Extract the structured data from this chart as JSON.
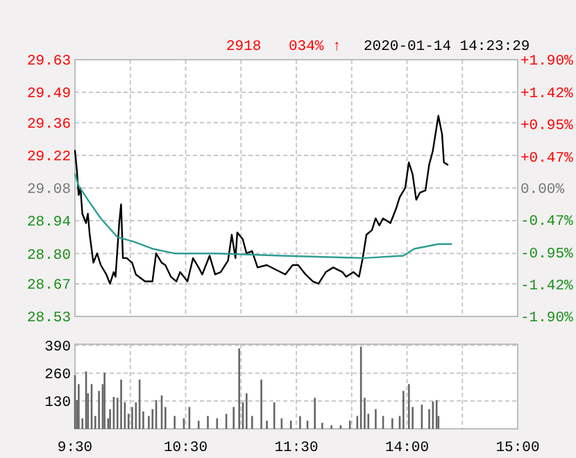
{
  "chart_data": [
    {
      "type": "line",
      "annotations": [
        "2918",
        "034% ↑",
        "2020-01-14 14:23:29"
      ],
      "categories": [
        null,
        null,
        null,
        null,
        null,
        null,
        null,
        null,
        null,
        null,
        null,
        null,
        null,
        null,
        null,
        null,
        null,
        null,
        null,
        null,
        null,
        null,
        null,
        null,
        null,
        null,
        null,
        null,
        null,
        null,
        null,
        null,
        null,
        null,
        null,
        null,
        null,
        null,
        null,
        null,
        null,
        null,
        null,
        null,
        null,
        null,
        null,
        null,
        null,
        null,
        null,
        null,
        null,
        null,
        null,
        null,
        null,
        null,
        null,
        null,
        null,
        null,
        null,
        null,
        null,
        null,
        null,
        null,
        null,
        null,
        null,
        null,
        null,
        null,
        null,
        null,
        null,
        null,
        null,
        null,
        null,
        null,
        null,
        null,
        null,
        null,
        null,
        null,
        null,
        null,
        null,
        null,
        null,
        null,
        null,
        null,
        null,
        null,
        null,
        null,
        null,
        null,
        null,
        null,
        null,
        null,
        null,
        null,
        null,
        null,
        null,
        null,
        null,
        null,
        null,
        null,
        null,
        null,
        null,
        null,
        null,
        null,
        null,
        null,
        null,
        null,
        null,
        null,
        null,
        null,
        null,
        null,
        null,
        null,
        null,
        null,
        null,
        null,
        null,
        null,
        null,
        null,
        null,
        null,
        null,
        null,
        null,
        null,
        null,
        null,
        null,
        null,
        null,
        null,
        null,
        null,
        null,
        null,
        null,
        null,
        null,
        null,
        null,
        null,
        null,
        null,
        null,
        null,
        null,
        null,
        null,
        null,
        null,
        null,
        null,
        null,
        null,
        null,
        null,
        null,
        null,
        null,
        null,
        null,
        null,
        null,
        null,
        null,
        null,
        null,
        null,
        null,
        null,
        null,
        null,
        null,
        null,
        null,
        null,
        null,
        null,
        null,
        null,
        null,
        null,
        null,
        null,
        null,
        null,
        null,
        null,
        null,
        null,
        null,
        null,
        null,
        null,
        null,
        null,
        null,
        null,
        null,
        null,
        null,
        null,
        null,
        null,
        null,
        null,
        null,
        null,
        null,
        null,
        null,
        null,
        null,
        null,
        null,
        null,
        null,
        null
      ],
      "series": [
        {
          "color": "#000000",
          "values": [
            29.24,
            29.16,
            29.05,
            29.08,
            28.97,
            null,
            28.93,
            28.97,
            28.88,
            null,
            28.76,
            null,
            28.8,
            null,
            28.75,
            null,
            null,
            28.71,
            null,
            28.67,
            null,
            28.72,
            28.7,
            null,
            28.93,
            29.01,
            28.78,
            null,
            28.78,
            null,
            null,
            28.76,
            null,
            28.71,
            null,
            null,
            null,
            null,
            28.68,
            null,
            null,
            null,
            28.68,
            null,
            28.8,
            null,
            null,
            28.76,
            null,
            28.75,
            null,
            null,
            28.7,
            null,
            null,
            28.68,
            null,
            28.72,
            null,
            null,
            null,
            28.68,
            null,
            null,
            28.78,
            null,
            null,
            28.74,
            null,
            28.71,
            null,
            null,
            null,
            28.79,
            null,
            null,
            28.71,
            null,
            null,
            28.72,
            null,
            null,
            null,
            28.77,
            null,
            28.88,
            null,
            28.78,
            28.89,
            null,
            null,
            28.86,
            null,
            28.8,
            null,
            null,
            28.81,
            null,
            null,
            28.74,
            null,
            null,
            null,
            null,
            28.75,
            null,
            null,
            null,
            null,
            28.73,
            null,
            null,
            null,
            null,
            28.71,
            null,
            null,
            null,
            28.75,
            null,
            null,
            28.75,
            null,
            null,
            null,
            28.71,
            null,
            null,
            null,
            28.68,
            null,
            null,
            28.67,
            null,
            null,
            null,
            28.72,
            null,
            null,
            null,
            28.74,
            null,
            null,
            null,
            null,
            28.72,
            null,
            28.7,
            null,
            null,
            null,
            28.72,
            null,
            null,
            28.7,
            null,
            28.78,
            null,
            28.88,
            null,
            null,
            28.9,
            null,
            28.95,
            null,
            28.92,
            null,
            28.95,
            null,
            null,
            null,
            28.93,
            null,
            null,
            28.99,
            null,
            29.04,
            null,
            null,
            29.08,
            null,
            29.19,
            null,
            29.14,
            null,
            29.03,
            null,
            29.06,
            null,
            null,
            29.07,
            null,
            29.18,
            null,
            29.24,
            null,
            null,
            29.39,
            null,
            29.31,
            29.19,
            null,
            29.18,
            null,
            null,
            null,
            null,
            null,
            null,
            null,
            null,
            null,
            null,
            null,
            null,
            null,
            null,
            null,
            null,
            null,
            null,
            null,
            null,
            null,
            null,
            null,
            null,
            null,
            null,
            null,
            null,
            null,
            null,
            null,
            null,
            null,
            null,
            null,
            null,
            null,
            null
          ]
        },
        {
          "color": "#2e9c94",
          "values": [
            29.14,
            null,
            29.09,
            null,
            null,
            null,
            null,
            29.03,
            null,
            null,
            null,
            null,
            null,
            null,
            28.95,
            null,
            null,
            null,
            null,
            null,
            null,
            null,
            null,
            28.87,
            null,
            null,
            null,
            null,
            null,
            null,
            null,
            null,
            28.85,
            null,
            null,
            null,
            null,
            null,
            null,
            null,
            null,
            null,
            28.82,
            null,
            null,
            null,
            null,
            null,
            null,
            null,
            null,
            null,
            null,
            null,
            28.8,
            null,
            null,
            null,
            null,
            null,
            null,
            null,
            null,
            null,
            null,
            null,
            null,
            null,
            null,
            null,
            null,
            null,
            null,
            null,
            null,
            null,
            null,
            28.8,
            null,
            null,
            null,
            null,
            null,
            null,
            null,
            null,
            null,
            null,
            null,
            null,
            null,
            null,
            null,
            null,
            null,
            null,
            null,
            null,
            null,
            null,
            null,
            null,
            null,
            null,
            null,
            null,
            null,
            null,
            null,
            null,
            null,
            null,
            28.79,
            null,
            null,
            null,
            null,
            null,
            null,
            null,
            null,
            null,
            null,
            null,
            null,
            null,
            null,
            null,
            null,
            null,
            null,
            null,
            null,
            null,
            null,
            null,
            null,
            null,
            null,
            null,
            null,
            null,
            null,
            null,
            null,
            null,
            null,
            null,
            null,
            null,
            null,
            null,
            null,
            null,
            null,
            null,
            null,
            28.78,
            null,
            null,
            null,
            null,
            null,
            null,
            null,
            null,
            null,
            null,
            null,
            null,
            null,
            null,
            null,
            null,
            null,
            null,
            null,
            null,
            28.79,
            null,
            null,
            null,
            null,
            null,
            28.82,
            null,
            null,
            null,
            null,
            null,
            null,
            null,
            null,
            null,
            null,
            null,
            null,
            28.84,
            null,
            null,
            null,
            null,
            null,
            null,
            28.84,
            null,
            null,
            null,
            null,
            null,
            null,
            null,
            null,
            null,
            null,
            null,
            null,
            null,
            null,
            null,
            null,
            null,
            null,
            null,
            null,
            null,
            null,
            null,
            null,
            null,
            null,
            null,
            null,
            null,
            null,
            null,
            null,
            null,
            null,
            null,
            null
          ]
        }
      ],
      "ylim": [
        28.53,
        29.63
      ],
      "yticks": [
        {
          "value": 29.63,
          "label": "29.63"
        },
        {
          "value": 29.49,
          "label": "29.49"
        },
        {
          "value": 29.36,
          "label": "29.36"
        },
        {
          "value": 29.22,
          "label": "29.22"
        },
        {
          "value": 29.08,
          "label": "29.08"
        },
        {
          "value": 28.94,
          "label": "28.94"
        },
        {
          "value": 28.8,
          "label": "28.80"
        },
        {
          "value": 28.67,
          "label": "28.67"
        },
        {
          "value": 28.53,
          "label": "28.53"
        }
      ],
      "y2lim": [
        -1.9,
        1.9
      ],
      "y2ticks": [
        {
          "value": 1.9,
          "label": "+1.90%"
        },
        {
          "value": 1.42,
          "label": "+1.42%"
        },
        {
          "value": 0.95,
          "label": "+0.95%"
        },
        {
          "value": 0.47,
          "label": "+0.47%"
        },
        {
          "value": 0,
          "label": "0.00%"
        },
        {
          "value": -0.47,
          "label": "-0.47%"
        },
        {
          "value": -0.95,
          "label": "-0.95%"
        },
        {
          "value": -1.42,
          "label": "-1.42%"
        },
        {
          "value": -1.9,
          "label": "-1.90%"
        }
      ],
      "grid": true,
      "tick_labels": "y"
    },
    {
      "type": "bar",
      "color": "#666666",
      "categories": [
        "9:30",
        null,
        null,
        null,
        null,
        null,
        null,
        null,
        null,
        null,
        null,
        null,
        null,
        null,
        null,
        null,
        null,
        null,
        null,
        null,
        null,
        null,
        null,
        null,
        null,
        null,
        null,
        null,
        null,
        null,
        null,
        null,
        null,
        null,
        null,
        null,
        null,
        null,
        null,
        null,
        null,
        null,
        null,
        null,
        null,
        null,
        null,
        null,
        null,
        null,
        null,
        null,
        null,
        null,
        null,
        null,
        null,
        null,
        null,
        null,
        "10:30",
        null,
        null,
        null,
        null,
        null,
        null,
        null,
        null,
        null,
        null,
        null,
        null,
        null,
        null,
        null,
        null,
        null,
        null,
        null,
        null,
        null,
        null,
        null,
        null,
        null,
        null,
        null,
        null,
        null,
        null,
        null,
        null,
        null,
        null,
        null,
        null,
        null,
        null,
        null,
        null,
        null,
        null,
        null,
        null,
        null,
        null,
        null,
        null,
        null,
        null,
        null,
        null,
        null,
        null,
        null,
        null,
        null,
        null,
        null,
        "11:30",
        null,
        null,
        null,
        null,
        null,
        null,
        null,
        null,
        null,
        null,
        null,
        null,
        null,
        null,
        null,
        null,
        null,
        null,
        null,
        null,
        null,
        null,
        null,
        null,
        null,
        null,
        null,
        null,
        null,
        null,
        null,
        null,
        null,
        null,
        null,
        null,
        null,
        null,
        null,
        null,
        null,
        null,
        null,
        null,
        null,
        null,
        null,
        null,
        null,
        null,
        null,
        null,
        null,
        null,
        null,
        null,
        null,
        null,
        null,
        "14:00",
        null,
        null,
        null,
        null,
        null,
        null,
        null,
        null,
        null,
        null,
        null,
        null,
        null,
        null,
        null,
        null,
        null,
        null,
        null,
        null,
        null,
        null,
        null,
        null,
        null,
        null,
        null,
        null,
        null,
        null,
        null,
        null,
        null,
        null,
        null,
        null,
        null,
        null,
        null,
        null,
        null,
        null,
        null,
        null,
        null,
        null,
        null,
        null,
        null,
        null,
        null,
        null,
        null,
        null,
        null,
        null,
        null,
        null,
        null,
        "15:00"
      ],
      "values": [
        251,
        134,
        209,
        null,
        49,
        null,
        268,
        166,
        null,
        209,
        null,
        60,
        null,
        177,
        null,
        209,
        262,
        null,
        49,
        92,
        null,
        149,
        null,
        145,
        null,
        230,
        null,
        124,
        null,
        70,
        null,
        102,
        null,
        124,
        null,
        230,
        null,
        81,
        null,
        null,
        60,
        null,
        92,
        null,
        134,
        null,
        null,
        156,
        null,
        102,
        null,
        null,
        null,
        null,
        60,
        null,
        null,
        null,
        null,
        49,
        null,
        null,
        102,
        null,
        null,
        null,
        null,
        38,
        null,
        null,
        null,
        null,
        60,
        null,
        null,
        null,
        null,
        49,
        null,
        null,
        null,
        null,
        70,
        null,
        null,
        null,
        102,
        null,
        null,
        375,
        null,
        124,
        null,
        166,
        null,
        null,
        60,
        null,
        null,
        null,
        null,
        230,
        null,
        null,
        38,
        null,
        null,
        null,
        124,
        null,
        null,
        null,
        49,
        null,
        null,
        null,
        null,
        38,
        null,
        null,
        null,
        null,
        60,
        null,
        null,
        null,
        38,
        null,
        null,
        null,
        145,
        null,
        null,
        null,
        28,
        null,
        null,
        null,
        null,
        17,
        null,
        null,
        null,
        null,
        17,
        null,
        null,
        null,
        null,
        38,
        null,
        null,
        null,
        60,
        null,
        383,
        null,
        145,
        null,
        70,
        null,
        null,
        null,
        92,
        null,
        null,
        null,
        60,
        null,
        null,
        null,
        null,
        49,
        null,
        null,
        null,
        60,
        null,
        177,
        null,
        null,
        209,
        null,
        102,
        null,
        null,
        null,
        null,
        113,
        null,
        null,
        null,
        92,
        null,
        128,
        null,
        134,
        60,
        null,
        null,
        null,
        null,
        null,
        null,
        null,
        null,
        null,
        null,
        null,
        null,
        null,
        null,
        null,
        null,
        null,
        null,
        null,
        null,
        null,
        null,
        null,
        null,
        null,
        null,
        null,
        null,
        null,
        null,
        null,
        null,
        null,
        null,
        null,
        null,
        null,
        null,
        null,
        null,
        null,
        null,
        null
      ],
      "ylim": [
        0,
        395
      ],
      "yticks": [
        130,
        260,
        390
      ],
      "grid": true
    }
  ]
}
